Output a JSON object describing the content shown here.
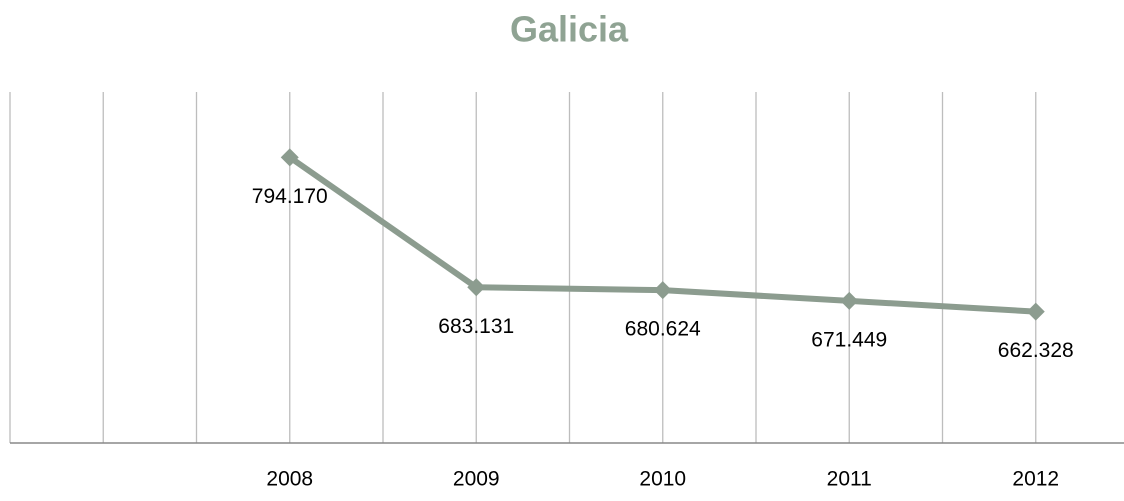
{
  "chart_data": {
    "type": "line",
    "title": "Galicia",
    "categories": [
      null,
      "2008",
      "2009",
      "2010",
      "2011",
      "2012"
    ],
    "values": [
      null,
      794170,
      683131,
      680624,
      671449,
      662328
    ],
    "value_labels": [
      null,
      "794.170",
      "683.131",
      "680.624",
      "671.449",
      "662.328"
    ],
    "color": "#8c9c8f",
    "ylim": [
      550000,
      850000
    ],
    "grid": true
  }
}
